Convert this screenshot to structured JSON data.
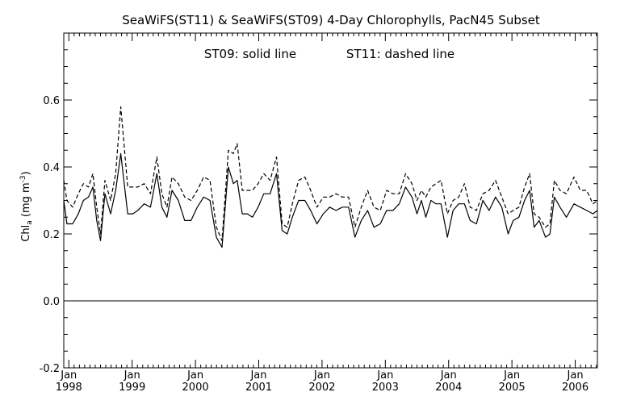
{
  "chart_data": {
    "type": "line",
    "title": "SeaWiFS(ST11) & SeaWiFS(ST09) 4-Day Chlorophylls, PacN45 Subset",
    "legend_text": [
      "ST09: solid line",
      "ST11: dashed line"
    ],
    "ylabel": {
      "main": "Chl",
      "sub": "a",
      "unit_open": " (mg m",
      "unit_sup": "-3",
      "unit_close": ")"
    },
    "ylim": [
      -0.2,
      0.8
    ],
    "xlim": [
      1997.92,
      2006.35
    ],
    "y_ticks": [
      -0.2,
      0.0,
      0.2,
      0.4,
      0.6
    ],
    "y_tick_labels": [
      "-0.2",
      "0.0",
      "0.2",
      "0.4",
      "0.6"
    ],
    "x_ticks": [
      {
        "value": 1998,
        "month": "Jan",
        "year": "1998"
      },
      {
        "value": 1999,
        "month": "Jan",
        "year": "1999"
      },
      {
        "value": 2000,
        "month": "Jan",
        "year": "2000"
      },
      {
        "value": 2001,
        "month": "Jan",
        "year": "2001"
      },
      {
        "value": 2002,
        "month": "Jan",
        "year": "2002"
      },
      {
        "value": 2003,
        "month": "Jan",
        "year": "2003"
      },
      {
        "value": 2004,
        "month": "Jan",
        "year": "2004"
      },
      {
        "value": 2005,
        "month": "Jan",
        "year": "2005"
      },
      {
        "value": 2006,
        "month": "Jan",
        "year": "2006"
      }
    ],
    "reference_line_y": 0.0,
    "series": [
      {
        "name": "ST09",
        "style": "solid",
        "x": [
          1997.92,
          1997.97,
          1998.06,
          1998.15,
          1998.23,
          1998.31,
          1998.38,
          1998.44,
          1998.5,
          1998.57,
          1998.66,
          1998.74,
          1998.82,
          1998.93,
          1999.01,
          1999.09,
          1999.19,
          1999.29,
          1999.39,
          1999.47,
          1999.55,
          1999.63,
          1999.73,
          1999.83,
          1999.93,
          2000.03,
          2000.13,
          2000.23,
          2000.33,
          2000.42,
          2000.52,
          2000.6,
          2000.66,
          2000.74,
          2000.82,
          2000.9,
          2000.99,
          2001.08,
          2001.18,
          2001.28,
          2001.37,
          2001.45,
          2001.53,
          2001.63,
          2001.73,
          2001.82,
          2001.92,
          2002.02,
          2002.12,
          2002.22,
          2002.32,
          2002.42,
          2002.52,
          2002.62,
          2002.72,
          2002.82,
          2002.92,
          2003.02,
          2003.12,
          2003.22,
          2003.32,
          2003.42,
          2003.5,
          2003.57,
          2003.64,
          2003.72,
          2003.8,
          2003.88,
          2003.98,
          2004.07,
          2004.16,
          2004.25,
          2004.34,
          2004.44,
          2004.54,
          2004.64,
          2004.74,
          2004.84,
          2004.94,
          2005.02,
          2005.11,
          2005.2,
          2005.28,
          2005.35,
          2005.43,
          2005.53,
          2005.6,
          2005.67,
          2005.76,
          2005.86,
          2005.98,
          2006.08,
          2006.18,
          2006.28,
          2006.35
        ],
        "values": [
          0.3,
          0.23,
          0.23,
          0.26,
          0.3,
          0.31,
          0.34,
          0.24,
          0.18,
          0.32,
          0.26,
          0.33,
          0.44,
          0.26,
          0.26,
          0.27,
          0.29,
          0.28,
          0.38,
          0.28,
          0.25,
          0.33,
          0.3,
          0.24,
          0.24,
          0.28,
          0.31,
          0.3,
          0.19,
          0.16,
          0.4,
          0.35,
          0.36,
          0.26,
          0.26,
          0.25,
          0.28,
          0.32,
          0.32,
          0.38,
          0.21,
          0.2,
          0.25,
          0.3,
          0.3,
          0.27,
          0.23,
          0.26,
          0.28,
          0.27,
          0.28,
          0.28,
          0.19,
          0.24,
          0.27,
          0.22,
          0.23,
          0.27,
          0.27,
          0.29,
          0.34,
          0.31,
          0.26,
          0.3,
          0.25,
          0.3,
          0.29,
          0.29,
          0.19,
          0.27,
          0.29,
          0.29,
          0.24,
          0.23,
          0.3,
          0.27,
          0.31,
          0.28,
          0.2,
          0.24,
          0.25,
          0.3,
          0.33,
          0.22,
          0.24,
          0.19,
          0.2,
          0.31,
          0.28,
          0.25,
          0.29,
          0.28,
          0.27,
          0.26,
          0.27
        ]
      },
      {
        "name": "ST11",
        "style": "dashed",
        "x": [
          1997.92,
          1997.97,
          1998.06,
          1998.15,
          1998.23,
          1998.31,
          1998.38,
          1998.44,
          1998.5,
          1998.57,
          1998.66,
          1998.74,
          1998.82,
          1998.93,
          1999.01,
          1999.09,
          1999.19,
          1999.29,
          1999.39,
          1999.47,
          1999.55,
          1999.63,
          1999.73,
          1999.83,
          1999.93,
          2000.03,
          2000.13,
          2000.23,
          2000.33,
          2000.42,
          2000.52,
          2000.6,
          2000.66,
          2000.74,
          2000.82,
          2000.9,
          2000.99,
          2001.08,
          2001.18,
          2001.28,
          2001.37,
          2001.45,
          2001.53,
          2001.63,
          2001.73,
          2001.82,
          2001.92,
          2002.02,
          2002.12,
          2002.22,
          2002.32,
          2002.42,
          2002.52,
          2002.62,
          2002.72,
          2002.82,
          2002.92,
          2003.02,
          2003.12,
          2003.22,
          2003.32,
          2003.42,
          2003.5,
          2003.57,
          2003.64,
          2003.72,
          2003.8,
          2003.88,
          2003.98,
          2004.07,
          2004.16,
          2004.25,
          2004.34,
          2004.44,
          2004.54,
          2004.64,
          2004.74,
          2004.84,
          2004.94,
          2005.02,
          2005.11,
          2005.2,
          2005.28,
          2005.35,
          2005.43,
          2005.53,
          2005.6,
          2005.67,
          2005.76,
          2005.86,
          2005.98,
          2006.08,
          2006.18,
          2006.28,
          2006.35
        ],
        "values": [
          0.36,
          0.3,
          0.28,
          0.32,
          0.35,
          0.34,
          0.38,
          0.28,
          0.2,
          0.36,
          0.3,
          0.38,
          0.58,
          0.34,
          0.34,
          0.34,
          0.35,
          0.32,
          0.43,
          0.32,
          0.28,
          0.37,
          0.35,
          0.31,
          0.3,
          0.33,
          0.37,
          0.36,
          0.22,
          0.18,
          0.45,
          0.44,
          0.47,
          0.33,
          0.33,
          0.33,
          0.35,
          0.38,
          0.36,
          0.43,
          0.23,
          0.22,
          0.29,
          0.36,
          0.37,
          0.33,
          0.28,
          0.31,
          0.31,
          0.32,
          0.31,
          0.31,
          0.22,
          0.28,
          0.33,
          0.28,
          0.27,
          0.33,
          0.32,
          0.32,
          0.38,
          0.35,
          0.3,
          0.33,
          0.31,
          0.34,
          0.35,
          0.36,
          0.26,
          0.3,
          0.31,
          0.35,
          0.28,
          0.27,
          0.32,
          0.33,
          0.36,
          0.31,
          0.26,
          0.27,
          0.28,
          0.34,
          0.38,
          0.26,
          0.25,
          0.22,
          0.23,
          0.36,
          0.33,
          0.32,
          0.37,
          0.33,
          0.33,
          0.29,
          0.3
        ]
      }
    ]
  }
}
